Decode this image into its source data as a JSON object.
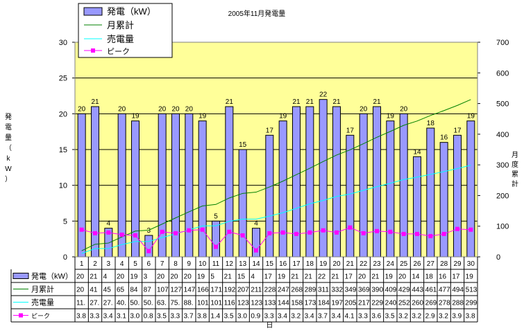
{
  "chart_data": {
    "type": "bar",
    "title": "2005年11月発電量",
    "xlabel": "日",
    "ylabel_left": "発電量（kW）",
    "ylabel_right": "月度累計",
    "ylim_left": [
      0,
      30
    ],
    "ylim_right": [
      0,
      700
    ],
    "yticks_left": [
      0,
      5,
      10,
      15,
      20,
      25,
      30
    ],
    "yticks_right": [
      0,
      100,
      200,
      300,
      400,
      500,
      600,
      700
    ],
    "categories": [
      "1",
      "2",
      "3",
      "4",
      "5",
      "6",
      "7",
      "8",
      "9",
      "10",
      "11",
      "12",
      "13",
      "14",
      "15",
      "16",
      "17",
      "18",
      "19",
      "20",
      "21",
      "22",
      "23",
      "24",
      "25",
      "26",
      "27",
      "28",
      "29",
      "30"
    ],
    "grid": true,
    "legend_position": "top-left",
    "colors": {
      "bar_fill": "#9999ff",
      "plot_background": "#ffff99",
      "cumulative_line": "#008000",
      "sales_line": "#00ffff",
      "peak_line": "#ff00ff"
    },
    "series": [
      {
        "name": "発電（kW）",
        "type": "bar",
        "axis": "left",
        "values": [
          20,
          21,
          4,
          20,
          19,
          3,
          20,
          20,
          20,
          19,
          5,
          21,
          15,
          4,
          17,
          19,
          21,
          21,
          22,
          21,
          17,
          20,
          21,
          19,
          20,
          14,
          18,
          16,
          17,
          19
        ],
        "table_row": [
          "20",
          "21",
          "4",
          "20",
          "19",
          "3",
          "20",
          "20",
          "20",
          "19",
          "5",
          "21",
          "15",
          "4",
          "17",
          "19",
          "21",
          "21",
          "22",
          "21",
          "17",
          "20",
          "21",
          "19",
          "20",
          "14",
          "18",
          "16",
          "17",
          "19"
        ]
      },
      {
        "name": "月累計",
        "type": "line",
        "axis": "right",
        "values": [
          20,
          41,
          45,
          65,
          84,
          87,
          107,
          127,
          147,
          166,
          171,
          192,
          207,
          211,
          228,
          247,
          268,
          289,
          311,
          332,
          349,
          369,
          390,
          409,
          429,
          443,
          461,
          477,
          494,
          513
        ],
        "table_row": [
          "20",
          "41",
          "45",
          "65",
          "84",
          "87",
          "107",
          "127",
          "147",
          "166",
          "171",
          "192",
          "207",
          "211",
          "228",
          "247",
          "268",
          "289",
          "311",
          "332",
          "349",
          "369",
          "390",
          "409",
          "429",
          "443",
          "461",
          "477",
          "494",
          "513"
        ]
      },
      {
        "name": "売電量",
        "type": "line",
        "axis": "right",
        "values": [
          11,
          27,
          27,
          40,
          50,
          50,
          63,
          75,
          88,
          101,
          101,
          116,
          123,
          123,
          133,
          144,
          158,
          173,
          184,
          197,
          205,
          217,
          229,
          240,
          252,
          260,
          269,
          278,
          288,
          299
        ],
        "table_row": [
          "11.",
          "27.",
          "27.",
          "40.",
          "50.",
          "50.",
          "63.",
          "75.",
          "88.",
          "101",
          "101",
          "116",
          "123",
          "123",
          "133",
          "144",
          "158",
          "173",
          "184",
          "197",
          "205",
          "217",
          "229",
          "240",
          "252",
          "260",
          "269",
          "278",
          "288",
          "299"
        ]
      },
      {
        "name": "ピーク",
        "type": "line",
        "axis": "left",
        "values": [
          3.8,
          3.3,
          3.4,
          3.1,
          3.0,
          0.8,
          3.5,
          3.3,
          3.7,
          3.8,
          1.4,
          3.5,
          3.0,
          0.9,
          3.3,
          3.4,
          3.2,
          3.4,
          3.7,
          3.4,
          4.1,
          3.3,
          3.6,
          3.5,
          3.2,
          3.2,
          2.9,
          3.2,
          3.9,
          3.8
        ],
        "table_row": [
          "3.8",
          "3.3",
          "3.4",
          "3.1",
          "3.0",
          "0.8",
          "3.5",
          "3.3",
          "3.7",
          "3.8",
          "1.4",
          "3.5",
          "3.0",
          "0.9",
          "3.3",
          "3.4",
          "3.2",
          "3.4",
          "3.7",
          "3.4",
          "4.1",
          "3.3",
          "3.6",
          "3.5",
          "3.2",
          "3.2",
          "2.9",
          "3.2",
          "3.9",
          "3.8"
        ]
      }
    ]
  }
}
